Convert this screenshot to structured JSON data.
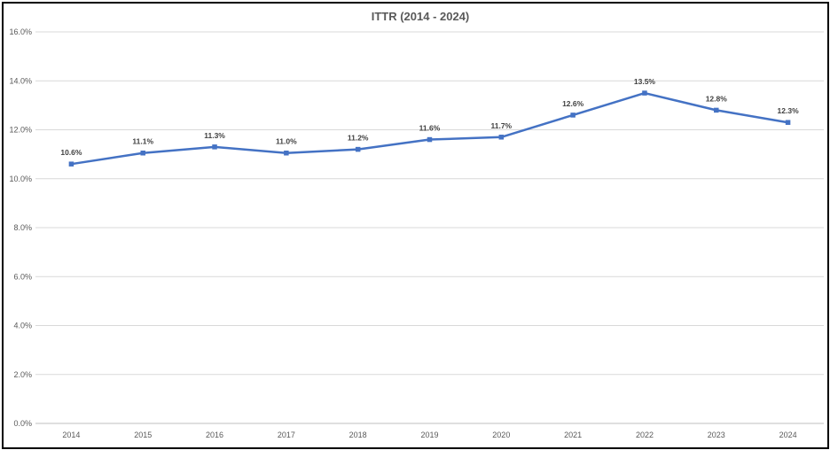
{
  "chart_data": {
    "type": "line",
    "title": "ITTR (2014 - 2024)",
    "categories": [
      "2014",
      "2015",
      "2016",
      "2017",
      "2018",
      "2019",
      "2020",
      "2021",
      "2022",
      "2023",
      "2024"
    ],
    "series": [
      {
        "name": "ITTR",
        "values": [
          10.6,
          11.05,
          11.3,
          11.05,
          11.2,
          11.6,
          11.7,
          12.6,
          13.5,
          12.8,
          12.3
        ],
        "labels": [
          "10.6%",
          "11.1%",
          "11.3%",
          "11.0%",
          "11.2%",
          "11.6%",
          "11.7%",
          "12.6%",
          "13.5%",
          "12.8%",
          "12.3%"
        ],
        "color": "#4472C4"
      }
    ],
    "y_ticks": [
      0,
      2,
      4,
      6,
      8,
      10,
      12,
      14,
      16
    ],
    "y_tick_labels": [
      "0.0%",
      "2.0%",
      "4.0%",
      "6.0%",
      "8.0%",
      "10.0%",
      "12.0%",
      "14.0%",
      "16.0%"
    ],
    "ylim": [
      0,
      16
    ],
    "grid": true,
    "xlabel": "",
    "ylabel": "",
    "gridline_color": "#D9D9D9",
    "axis_color": "#BFBFBF"
  }
}
